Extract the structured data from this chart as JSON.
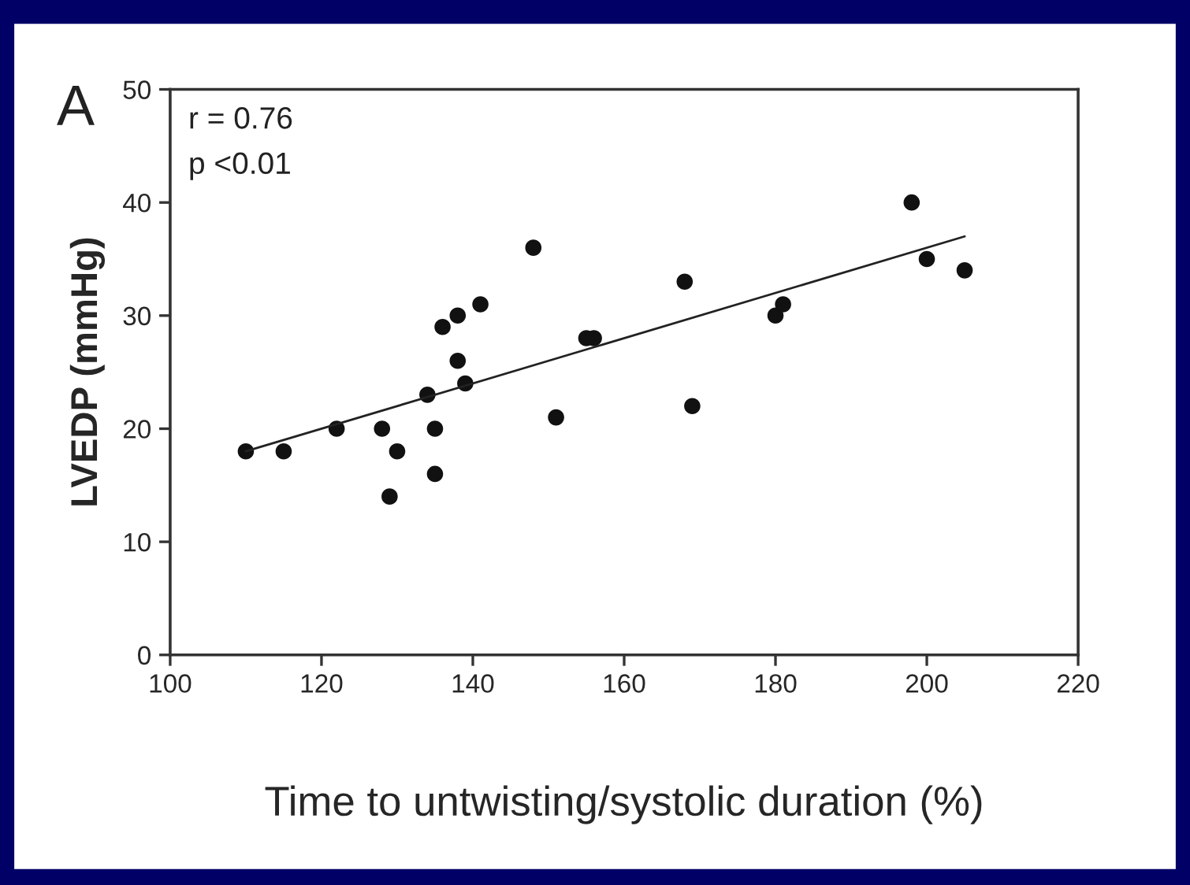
{
  "chart_data": {
    "type": "scatter",
    "xlabel": "Time to untwisting/systolic duration (%)",
    "ylabel": "LVEDP (mmHg)",
    "annotations": [
      "A",
      "r = 0.76",
      "p <0.01"
    ],
    "xlim": [
      100,
      220
    ],
    "xticks": [
      100,
      120,
      140,
      160,
      180,
      200,
      220
    ],
    "ylim": [
      0,
      50
    ],
    "yticks": [
      0,
      10,
      20,
      30,
      40,
      50
    ],
    "grid": false,
    "legend": false,
    "marker": "circle",
    "series": [
      {
        "color": "#111111",
        "x": [
          110,
          115,
          122,
          128,
          129,
          130,
          134,
          135,
          135,
          136,
          138,
          138,
          139,
          141,
          148,
          151,
          155,
          156,
          168,
          169,
          180,
          181,
          198,
          200,
          205
        ],
        "values": [
          18,
          18,
          20,
          20,
          14,
          18,
          23,
          20,
          16,
          29,
          30,
          26,
          24,
          31,
          36,
          21,
          28,
          28,
          33,
          22,
          30,
          31,
          40,
          35,
          34
        ]
      },
      {
        "type": "line",
        "color": "#222222",
        "line_style": "solid",
        "marker": "none",
        "x": [
          110,
          205
        ],
        "values": [
          18,
          37
        ]
      }
    ]
  }
}
